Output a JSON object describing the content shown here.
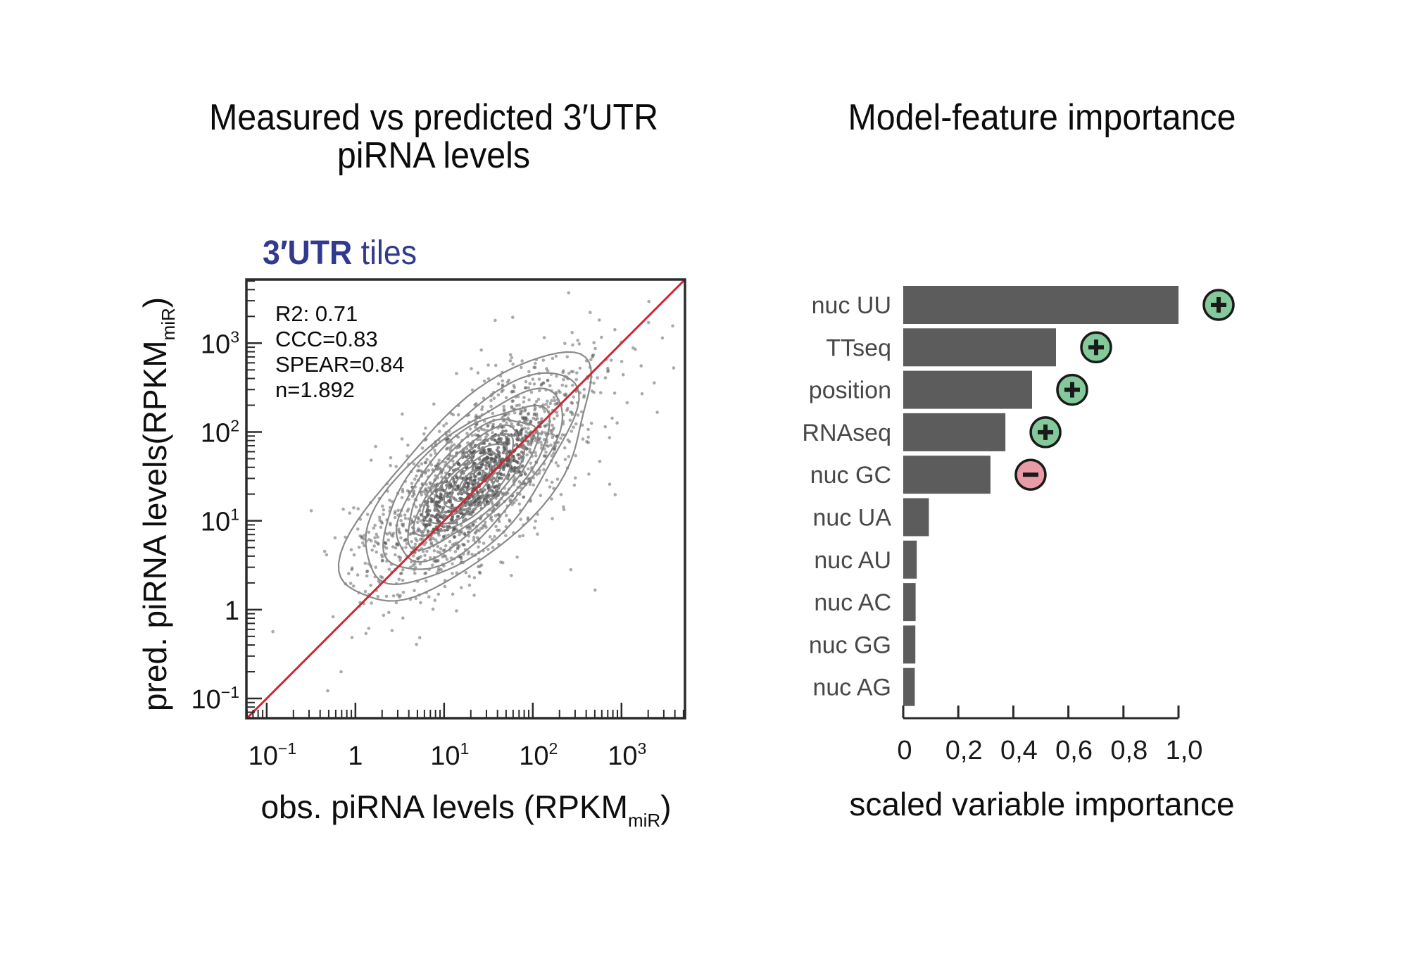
{
  "titles": {
    "left_line1": "Measured vs predicted 3′UTR",
    "left_line2": "piRNA levels",
    "right": "Model-feature importance"
  },
  "chart_data": [
    {
      "type": "scatter",
      "title": "Measured vs predicted 3′UTR piRNA levels",
      "subtitle_bold": "3′UTR",
      "subtitle_rest": " tiles",
      "subtitle_color": "#323a8f",
      "xlabel": "obs. piRNA levels (RPKM",
      "xlabel_sub": "miR",
      "xlabel_end": ")",
      "ylabel": "pred. piRNA levels(RPKM",
      "ylabel_sub": "miR",
      "ylabel_end": ")",
      "x_scale": "log10",
      "y_scale": "log10",
      "xlim": [
        0.059,
        5200
      ],
      "ylim": [
        0.06,
        5200
      ],
      "x_ticks": [
        {
          "value": 0.1,
          "base": "10",
          "exp": "−1"
        },
        {
          "value": 1,
          "base": "1",
          "exp": ""
        },
        {
          "value": 10,
          "base": "10",
          "exp": "1"
        },
        {
          "value": 100,
          "base": "10",
          "exp": "2"
        },
        {
          "value": 1000,
          "base": "10",
          "exp": "3"
        }
      ],
      "y_ticks": [
        {
          "value": 0.1,
          "base": "10",
          "exp": "−1"
        },
        {
          "value": 1,
          "base": "1",
          "exp": ""
        },
        {
          "value": 10,
          "base": "10",
          "exp": "1"
        },
        {
          "value": 100,
          "base": "10",
          "exp": "2"
        },
        {
          "value": 1000,
          "base": "10",
          "exp": "3"
        }
      ],
      "stats": [
        "R2: 0.71",
        "CCC=0.83",
        "SPEAR=0.84",
        "n=1.892"
      ],
      "n_points": 1892,
      "point_distribution": {
        "center_log10": [
          1.35,
          1.45
        ],
        "sd_major_log10": 0.78,
        "sd_minor_log10": 0.3,
        "angle_deg": 45
      },
      "reference_line": {
        "type": "identity y=x",
        "color": "#d7242f"
      },
      "contours": "2D density contours (gray)",
      "point_color": "#555555",
      "grid": false
    },
    {
      "type": "bar",
      "orientation": "horizontal",
      "title": "Model-feature importance",
      "xlabel": "scaled variable importance",
      "xlim": [
        0,
        1.0
      ],
      "x_ticks": [
        "0",
        "0,2",
        "0,4",
        "0,6",
        "0,8",
        "1,0"
      ],
      "bar_color": "#5b5c5b",
      "categories": [
        "nuc UU",
        "TTseq",
        "position",
        "RNAseq",
        "nuc GC",
        "nuc UA",
        "nuc AU",
        "nuc AC",
        "nuc GG",
        "nuc AG"
      ],
      "values": [
        1.0,
        0.555,
        0.468,
        0.371,
        0.317,
        0.093,
        0.049,
        0.045,
        0.044,
        0.042
      ],
      "effect_signs": [
        "+",
        "+",
        "+",
        "+",
        "-",
        null,
        null,
        null,
        null,
        null
      ],
      "sign_colors": {
        "+": "#84c99a",
        "-": "#e89ba6"
      }
    }
  ]
}
